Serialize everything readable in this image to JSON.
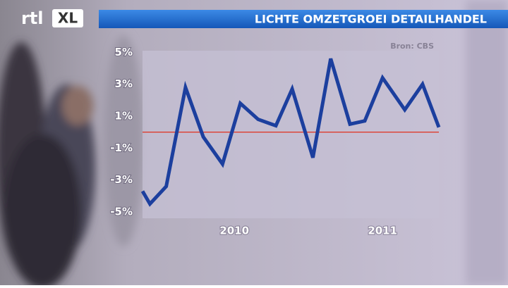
{
  "logo": [
    "rtl",
    "XL"
  ],
  "chart_data": {
    "type": "line",
    "title": "LICHTE OMZETGROEI DETAILHANDEL",
    "source": "Bron: CBS",
    "x": [
      2009.38,
      2009.43,
      2009.54,
      2009.67,
      2009.79,
      2009.92,
      2010.04,
      2010.16,
      2010.28,
      2010.39,
      2010.53,
      2010.65,
      2010.78,
      2010.88,
      2011.0,
      2011.15,
      2011.27,
      2011.38
    ],
    "series": [
      {
        "color": "#1c3f9e",
        "values": [
          -3.7,
          -4.5,
          -3.4,
          2.8,
          -0.3,
          -2.0,
          1.8,
          0.8,
          0.4,
          2.7,
          -1.6,
          4.6,
          0.5,
          0.7,
          3.4,
          1.4,
          3.0,
          0.3
        ]
      }
    ],
    "xlim": [
      2009.38,
      2011.38
    ],
    "xticks": [
      2010,
      2011
    ],
    "ylim": [
      -5.4,
      5.1
    ],
    "yticks": [
      {
        "value": 5,
        "label": "5%"
      },
      {
        "value": 3,
        "label": "3%"
      },
      {
        "value": 1,
        "label": "1%"
      },
      {
        "value": -1,
        "label": "-1%"
      },
      {
        "value": -3,
        "label": "-3%"
      },
      {
        "value": -5,
        "label": "-5%"
      }
    ],
    "zero_line_color": "#e0301e"
  }
}
